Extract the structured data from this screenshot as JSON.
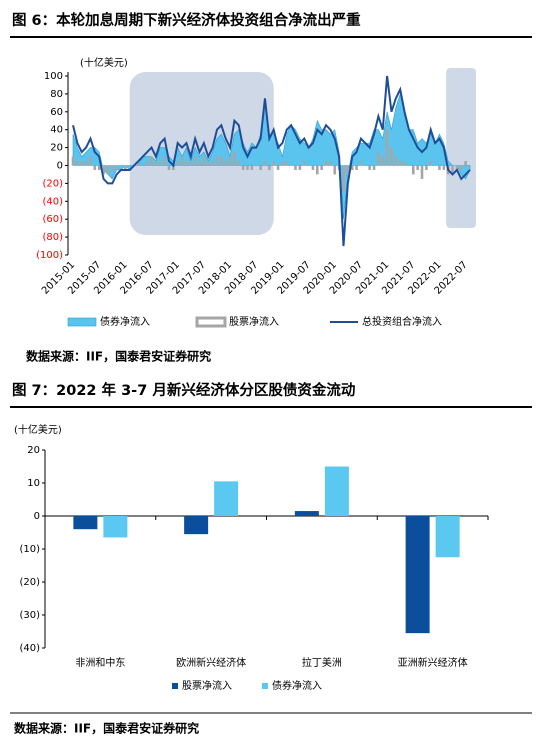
{
  "figure_6": {
    "title": "图 6：本轮加息周期下新兴经济体投资组合净流出严重",
    "source": "数据来源：IIF，国泰君安证券研究"
  },
  "figure_7": {
    "title": "图 7：2022 年 3-7 月新兴经济体分区股债资金流动",
    "source": "数据来源：IIF，国泰君安证券研究"
  },
  "chart_data": [
    {
      "type": "combo",
      "y_label": "(十亿美元)",
      "categories": [
        "2015-01",
        null,
        null,
        null,
        null,
        null,
        "2015-07",
        null,
        null,
        null,
        null,
        null,
        "2016-01",
        null,
        null,
        null,
        null,
        null,
        "2016-07",
        null,
        null,
        null,
        null,
        null,
        "2017-01",
        null,
        null,
        null,
        null,
        null,
        "2017-07",
        null,
        null,
        null,
        null,
        null,
        "2018-01",
        null,
        null,
        null,
        null,
        null,
        "2018-07",
        null,
        null,
        null,
        null,
        null,
        "2019-01",
        null,
        null,
        null,
        null,
        null,
        "2019-07",
        null,
        null,
        null,
        null,
        null,
        "2020-01",
        null,
        null,
        null,
        null,
        null,
        "2020-07",
        null,
        null,
        null,
        null,
        null,
        "2021-01",
        null,
        null,
        null,
        null,
        null,
        "2021-07",
        null,
        null,
        null,
        null,
        null,
        "2022-01",
        null,
        null,
        null,
        null,
        null,
        "2022-07",
        null
      ],
      "series": [
        {
          "name": "债券净流入",
          "kind": "area",
          "color": "#5bc4ee",
          "values": [
            35,
            20,
            10,
            15,
            20,
            20,
            15,
            -5,
            -10,
            -15,
            -5,
            -5,
            0,
            -5,
            0,
            0,
            10,
            10,
            10,
            5,
            20,
            20,
            10,
            5,
            20,
            10,
            20,
            5,
            20,
            10,
            15,
            5,
            15,
            30,
            35,
            25,
            10,
            35,
            40,
            25,
            15,
            25,
            20,
            35,
            70,
            35,
            35,
            25,
            10,
            35,
            45,
            40,
            30,
            25,
            20,
            30,
            50,
            40,
            40,
            35,
            40,
            15,
            -60,
            -10,
            15,
            20,
            25,
            25,
            25,
            40,
            40,
            30,
            60,
            40,
            65,
            80,
            55,
            40,
            40,
            25,
            30,
            25,
            35,
            25,
            35,
            25,
            5,
            0,
            0,
            -10,
            -15,
            -5
          ]
        },
        {
          "name": "股票净流入",
          "kind": "bar",
          "color": "#a6a6a6",
          "values": [
            10,
            5,
            5,
            5,
            10,
            -5,
            -5,
            -10,
            -10,
            -5,
            -5,
            0,
            -5,
            0,
            0,
            5,
            0,
            5,
            10,
            5,
            5,
            10,
            -5,
            -5,
            5,
            10,
            5,
            5,
            10,
            5,
            10,
            5,
            5,
            10,
            10,
            5,
            10,
            15,
            5,
            -5,
            -5,
            -5,
            0,
            -5,
            5,
            -5,
            5,
            -5,
            5,
            5,
            0,
            -5,
            -5,
            5,
            0,
            -5,
            -10,
            -5,
            5,
            5,
            -10,
            -5,
            -30,
            -10,
            -5,
            -5,
            5,
            0,
            -5,
            -5,
            15,
            10,
            40,
            20,
            10,
            5,
            5,
            0,
            -10,
            -5,
            -15,
            -5,
            5,
            0,
            -5,
            -5,
            -10,
            -10,
            -5,
            -5,
            5,
            0
          ]
        },
        {
          "name": "总投资组合净流入",
          "kind": "line",
          "color": "#1f4e99",
          "values": [
            45,
            25,
            15,
            20,
            30,
            15,
            10,
            -15,
            -20,
            -20,
            -10,
            -5,
            -5,
            -5,
            0,
            5,
            10,
            15,
            20,
            10,
            25,
            30,
            5,
            0,
            25,
            20,
            25,
            10,
            30,
            15,
            25,
            10,
            20,
            40,
            45,
            30,
            20,
            50,
            45,
            20,
            10,
            20,
            20,
            30,
            75,
            30,
            40,
            20,
            25,
            40,
            45,
            35,
            25,
            30,
            20,
            25,
            40,
            35,
            45,
            40,
            30,
            10,
            -90,
            -20,
            10,
            15,
            30,
            25,
            20,
            35,
            55,
            40,
            100,
            60,
            75,
            85,
            60,
            40,
            30,
            20,
            15,
            20,
            40,
            25,
            30,
            20,
            -5,
            -10,
            -5,
            -15,
            -10,
            -5
          ]
        }
      ],
      "ylim": [
        -100,
        100
      ],
      "yticks": [
        {
          "value": -100,
          "label": "(100)"
        },
        {
          "value": -80,
          "label": "(80)"
        },
        {
          "value": -60,
          "label": "(60)"
        },
        {
          "value": -40,
          "label": "(40)"
        },
        {
          "value": -20,
          "label": "(20)"
        },
        0,
        20,
        40,
        60,
        80,
        100
      ],
      "negative_tick_color": "#ff0000"
    },
    {
      "type": "bar",
      "y_label": "(十亿美元)",
      "categories": [
        "非洲和中东",
        "欧洲新兴经济体",
        "拉丁美洲",
        "亚洲新兴经济体"
      ],
      "series": [
        {
          "name": "股票净流入",
          "color": "#0b4f9c",
          "values": [
            -4,
            -5.5,
            1.5,
            -35.5
          ]
        },
        {
          "name": "债券净流入",
          "color": "#5bc8f2",
          "values": [
            -6.5,
            10.5,
            15,
            -12.5
          ]
        }
      ],
      "ylim": [
        -40,
        20
      ],
      "yticks": [
        {
          "value": -40,
          "label": "(40)"
        },
        {
          "value": -30,
          "label": "(30)"
        },
        {
          "value": -20,
          "label": "(20)"
        },
        {
          "value": -10,
          "label": "(10)"
        },
        0,
        10,
        20
      ]
    }
  ]
}
